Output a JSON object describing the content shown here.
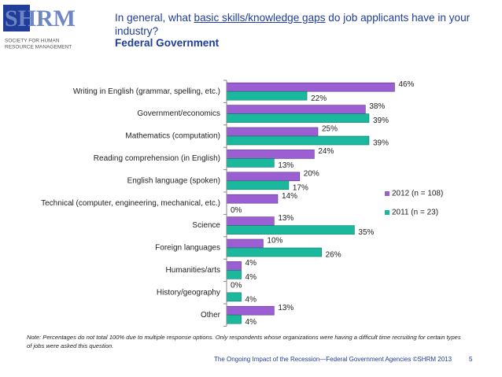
{
  "logo": {
    "name": "SHRM",
    "tagline_1": "SOCIETY FOR HUMAN",
    "tagline_2": "RESOURCE MANAGEMENT"
  },
  "chart_data": {
    "type": "bar",
    "orientation": "horizontal",
    "title_parts": [
      "In general, what ",
      "basic skills/knowledge gaps",
      " do job applicants have in your industry?"
    ],
    "subtitle": "Federal Government",
    "categories": [
      "Writing in English (grammar, spelling, etc.)",
      "Government/economics",
      "Mathematics (computation)",
      "Reading comprehension (in English)",
      "English language (spoken)",
      "Technical (computer, engineering, mechanical, etc.)",
      "Science",
      "Foreign languages",
      "Humanities/arts",
      "History/geography",
      "Other"
    ],
    "series": [
      {
        "name": "2012 (n = 108)",
        "color": "#9b5fd3",
        "values": [
          46,
          38,
          25,
          24,
          20,
          14,
          13,
          10,
          4,
          0,
          13
        ],
        "value_labels": [
          "46%",
          "38%",
          "25%",
          "24%",
          "20%",
          "14%",
          "13%",
          "10%",
          "4%",
          "0%",
          "13%"
        ]
      },
      {
        "name": "2011 (n = 23)",
        "color": "#1ab89c",
        "values": [
          22,
          39,
          39,
          13,
          17,
          0,
          35,
          26,
          4,
          4,
          4
        ],
        "value_labels": [
          "22%",
          "39%",
          "39%",
          "13%",
          "17%",
          "0%",
          "35%",
          "26%",
          "4%",
          "4%",
          "4%"
        ]
      }
    ],
    "xlim": [
      0,
      50
    ],
    "legend": "right"
  },
  "note": "Note: Percentages do not total 100% due to multiple response options. Only respondents whose organizations were having a difficult time recruiting for certain types of jobs were asked this question.",
  "footer": "The Ongoing Impact of the Recession—Federal Government Agencies ©SHRM 2013",
  "page_number": "5"
}
